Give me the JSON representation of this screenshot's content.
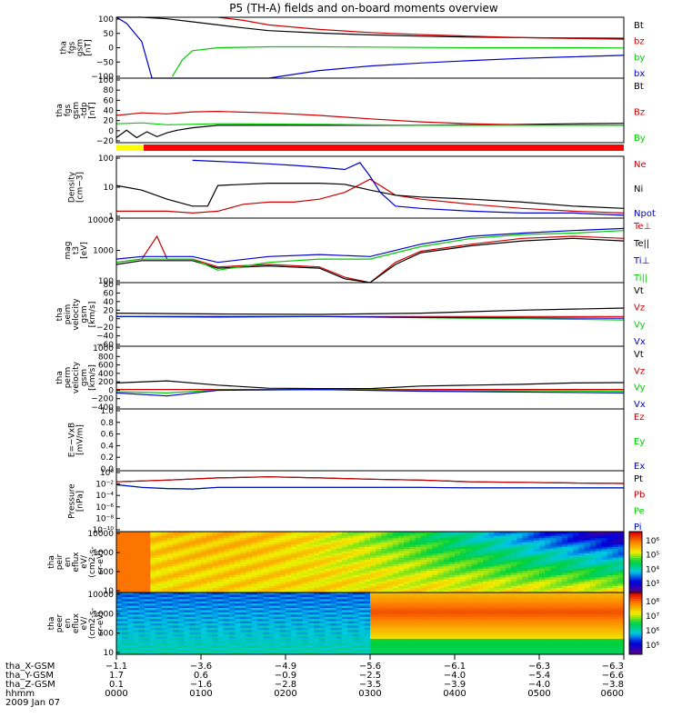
{
  "title": "P5 (TH-A) fields and on-board moments overview",
  "colors": {
    "black": "#000000",
    "red": "#cc0000",
    "green": "#00cc00",
    "blue": "#0000cc",
    "mode_bar_red": "#ff0000",
    "mode_bar_yellow": "#ffff00"
  },
  "chart_data": [
    {
      "type": "line",
      "ylabel": [
        "tha",
        "fgs",
        "gsm",
        "[nT]"
      ],
      "yticks": [
        "100",
        "50",
        "0",
        "−50",
        "−100"
      ],
      "ylim": [
        -100,
        100
      ],
      "series": [
        {
          "name": "Bt",
          "color": "#000000",
          "x": [
            0,
            0.02,
            0.05,
            0.1,
            0.15,
            0.2,
            0.25,
            0.3,
            0.4,
            0.5,
            0.6,
            0.7,
            0.8,
            0.9,
            1.0
          ],
          "y": [
            100,
            100,
            100,
            95,
            85,
            75,
            65,
            56,
            48,
            42,
            38,
            35,
            33,
            32,
            31
          ]
        },
        {
          "name": "bz",
          "color": "#cc0000",
          "x": [
            0.2,
            0.25,
            0.3,
            0.4,
            0.5,
            0.6,
            0.7,
            0.8,
            0.9,
            1.0
          ],
          "y": [
            100,
            90,
            75,
            60,
            50,
            43,
            38,
            33,
            30,
            28
          ]
        },
        {
          "name": "by",
          "color": "#00cc00",
          "x": [
            0.11,
            0.13,
            0.15,
            0.2,
            0.3,
            0.4,
            0.5,
            0.6,
            0.7,
            0.8,
            0.9,
            1.0
          ],
          "y": [
            -95,
            -40,
            -10,
            0,
            3,
            3,
            2,
            1,
            0,
            0,
            0,
            -1
          ]
        },
        {
          "name": "bx",
          "color": "#0000cc",
          "x": [
            0,
            0.02,
            0.05,
            0.07,
            0.3,
            0.4,
            0.5,
            0.6,
            0.7,
            0.8,
            0.9,
            1.0
          ],
          "y": [
            100,
            80,
            20,
            -100,
            -100,
            -75,
            -60,
            -50,
            -42,
            -35,
            -30,
            -25
          ]
        }
      ]
    },
    {
      "type": "line",
      "ylabel": [
        "tha",
        "fgs",
        "gsm",
        "-tdp",
        "[nT]"
      ],
      "yticks": [
        "100",
        "80",
        "60",
        "40",
        "20",
        "0",
        "−20"
      ],
      "ylim": [
        -30,
        100
      ],
      "series": [
        {
          "name": "Bt",
          "color": "#000000",
          "x": [
            0,
            0.02,
            0.04,
            0.06,
            0.08,
            0.1,
            0.12,
            0.15,
            0.2,
            0.3,
            0.4,
            0.5,
            0.6,
            0.7,
            0.8,
            0.9,
            1.0
          ],
          "y": [
            -20,
            -5,
            -20,
            -8,
            -18,
            -10,
            -5,
            0,
            5,
            5,
            5,
            5,
            5,
            6,
            7,
            8,
            9
          ]
        },
        {
          "name": "Bz",
          "color": "#cc0000",
          "x": [
            0,
            0.05,
            0.1,
            0.15,
            0.2,
            0.3,
            0.4,
            0.5,
            0.6,
            0.7,
            0.8,
            0.9,
            1.0
          ],
          "y": [
            25,
            30,
            28,
            32,
            33,
            30,
            25,
            18,
            12,
            8,
            6,
            5,
            5
          ]
        },
        {
          "name": "By",
          "color": "#00cc00",
          "x": [
            0,
            0.05,
            0.1,
            0.2,
            0.4,
            0.6,
            0.8,
            1.0
          ],
          "y": [
            8,
            10,
            6,
            8,
            7,
            5,
            5,
            5
          ]
        }
      ]
    },
    {
      "type": "line",
      "ylabel": [
        "Density",
        "[cm−3]"
      ],
      "yticks": [
        "100",
        "10",
        "1"
      ],
      "scale": "log",
      "ylim": [
        0.3,
        150
      ],
      "series": [
        {
          "name": "Ne",
          "color": "#cc0000",
          "x": [
            0,
            0.1,
            0.15,
            0.2,
            0.25,
            0.3,
            0.35,
            0.4,
            0.45,
            0.5,
            0.55,
            0.6,
            0.7,
            0.8,
            0.9,
            1.0
          ],
          "y": [
            0.6,
            0.6,
            0.5,
            0.6,
            1.2,
            1.5,
            1.5,
            2,
            4,
            15,
            3,
            2,
            1.2,
            0.8,
            0.6,
            0.5
          ]
        },
        {
          "name": "Ni",
          "color": "#000000",
          "x": [
            0,
            0.05,
            0.1,
            0.15,
            0.18,
            0.2,
            0.25,
            0.3,
            0.4,
            0.45,
            0.5,
            0.55,
            0.6,
            0.7,
            0.8,
            0.9,
            1.0
          ],
          "y": [
            8,
            5,
            2,
            1,
            1,
            8,
            9,
            10,
            10,
            9,
            5,
            3,
            2.5,
            2,
            1.5,
            1,
            0.8
          ]
        },
        {
          "name": "Npot",
          "color": "#0000cc",
          "x": [
            0.15,
            0.2,
            0.25,
            0.3,
            0.35,
            0.4,
            0.45,
            0.48,
            0.5,
            0.52,
            0.55,
            0.6,
            0.7,
            0.8,
            0.9,
            1.0
          ],
          "y": [
            100,
            90,
            80,
            70,
            60,
            50,
            40,
            80,
            20,
            4,
            1,
            0.8,
            0.6,
            0.5,
            0.5,
            0.4
          ]
        }
      ]
    },
    {
      "type": "line",
      "ylabel": [
        "mag",
        "t3",
        "[eV]"
      ],
      "yticks": [
        "10000",
        "1000",
        "100"
      ],
      "scale": "log",
      "ylim": [
        50,
        15000
      ],
      "series": [
        {
          "name": "Te⊥",
          "color": "#cc0000",
          "x": [
            0,
            0.05,
            0.08,
            0.1,
            0.15,
            0.2,
            0.3,
            0.4,
            0.45,
            0.5,
            0.55,
            0.6,
            0.7,
            0.8,
            0.9,
            1.0
          ],
          "y": [
            300,
            400,
            3000,
            400,
            400,
            200,
            250,
            200,
            80,
            50,
            300,
            800,
            1500,
            2500,
            3000,
            2500
          ]
        },
        {
          "name": "Te||",
          "color": "#000000",
          "x": [
            0,
            0.05,
            0.1,
            0.15,
            0.2,
            0.3,
            0.4,
            0.45,
            0.5,
            0.55,
            0.6,
            0.7,
            0.8,
            0.9,
            1.0
          ],
          "y": [
            250,
            350,
            350,
            350,
            180,
            220,
            180,
            70,
            40,
            250,
            700,
            1300,
            2000,
            2500,
            2000
          ]
        },
        {
          "name": "Ti⊥",
          "color": "#0000cc",
          "x": [
            0,
            0.05,
            0.1,
            0.15,
            0.2,
            0.3,
            0.4,
            0.5,
            0.6,
            0.7,
            0.8,
            0.9,
            1.0
          ],
          "y": [
            400,
            500,
            500,
            500,
            300,
            500,
            600,
            500,
            1500,
            3000,
            4000,
            5000,
            6000
          ]
        },
        {
          "name": "Ti||",
          "color": "#00cc00",
          "x": [
            0,
            0.05,
            0.1,
            0.15,
            0.2,
            0.3,
            0.4,
            0.5,
            0.6,
            0.7,
            0.8,
            0.9,
            1.0
          ],
          "y": [
            300,
            400,
            400,
            400,
            150,
            300,
            400,
            400,
            1200,
            2500,
            3500,
            4000,
            5000
          ]
        }
      ]
    },
    {
      "type": "line",
      "ylabel": [
        "tha",
        "peim",
        "velocity",
        "gsm",
        "[km/s]"
      ],
      "yticks": [
        "80",
        "60",
        "40",
        "20",
        "0",
        "−20",
        "−40",
        "−60"
      ],
      "ylim": [
        -70,
        80
      ],
      "series": [
        {
          "name": "Vt",
          "color": "#000000",
          "x": [
            0,
            0.2,
            0.4,
            0.6,
            0.8,
            1.0
          ],
          "y": [
            8,
            6,
            5,
            8,
            15,
            20
          ]
        },
        {
          "name": "Vz",
          "color": "#cc0000",
          "x": [
            0,
            0.2,
            0.4,
            0.6,
            0.8,
            1.0
          ],
          "y": [
            0,
            0,
            0,
            0,
            0,
            0
          ]
        },
        {
          "name": "Vy",
          "color": "#00cc00",
          "x": [
            0,
            0.2,
            0.4,
            0.6,
            0.8,
            1.0
          ],
          "y": [
            0,
            -2,
            0,
            -3,
            -5,
            -8
          ]
        },
        {
          "name": "Vx",
          "color": "#0000cc",
          "x": [
            0,
            0.2,
            0.4,
            0.6,
            0.8,
            1.0
          ],
          "y": [
            0,
            0,
            0,
            -2,
            -3,
            -4
          ]
        }
      ]
    },
    {
      "type": "line",
      "ylabel": [
        "tha",
        "perm",
        "velocity",
        "gsm",
        "[km/s]"
      ],
      "yticks": [
        "1000",
        "800",
        "600",
        "400",
        "200",
        "0",
        "−200",
        "−400"
      ],
      "ylim": [
        -450,
        1000
      ],
      "series": [
        {
          "name": "Vt",
          "color": "#000000",
          "x": [
            0,
            0.1,
            0.2,
            0.3,
            0.4,
            0.5,
            0.6,
            0.7,
            0.8,
            0.9,
            1.0
          ],
          "y": [
            150,
            200,
            100,
            30,
            20,
            20,
            80,
            100,
            120,
            150,
            160
          ]
        },
        {
          "name": "Vz",
          "color": "#cc0000",
          "x": [
            0,
            0.2,
            0.4,
            0.6,
            0.8,
            1.0
          ],
          "y": [
            0,
            0,
            0,
            0,
            0,
            0
          ]
        },
        {
          "name": "Vy",
          "color": "#00cc00",
          "x": [
            0,
            0.1,
            0.2,
            0.4,
            0.6,
            0.8,
            1.0
          ],
          "y": [
            -50,
            -80,
            -10,
            0,
            -20,
            -30,
            -40
          ]
        },
        {
          "name": "Vx",
          "color": "#0000cc",
          "x": [
            0,
            0.1,
            0.2,
            0.4,
            0.6,
            0.8,
            1.0
          ],
          "y": [
            -80,
            -150,
            -20,
            0,
            -40,
            -60,
            -80
          ]
        }
      ]
    },
    {
      "type": "line",
      "ylabel": [
        "E=−VxB",
        "[mV/m]"
      ],
      "yticks": [
        "1.0",
        "0.8",
        "0.6",
        "0.4",
        "0.2",
        "0.0"
      ],
      "ylim": [
        0,
        1
      ],
      "series": [
        {
          "name": "Ez",
          "color": "#cc0000",
          "x": [],
          "y": []
        },
        {
          "name": "Ey",
          "color": "#00cc00",
          "x": [],
          "y": []
        },
        {
          "name": "Ex",
          "color": "#0000cc",
          "x": [],
          "y": []
        }
      ]
    },
    {
      "type": "line",
      "ylabel": [
        "Pressure",
        "[nPa]"
      ],
      "yticks": [
        "10⁰",
        "10⁻²",
        "10⁻⁴",
        "10⁻⁶",
        "10⁻⁸",
        "10⁻¹⁰"
      ],
      "scale": "log",
      "ylim": [
        1e-10,
        10
      ],
      "series": [
        {
          "name": "Pt",
          "color": "#000000",
          "x": [
            0,
            0.1,
            0.2,
            0.3,
            0.4,
            0.5,
            0.6,
            0.7,
            0.8,
            0.9,
            1.0
          ],
          "y": [
            0.1,
            0.2,
            0.5,
            0.8,
            0.5,
            0.3,
            0.2,
            0.1,
            0.08,
            0.06,
            0.05
          ]
        },
        {
          "name": "Pb",
          "color": "#cc0000",
          "x": [
            0,
            0.1,
            0.2,
            0.3,
            0.4,
            0.5,
            0.6,
            0.7,
            0.8,
            0.9,
            1.0
          ],
          "y": [
            0.1,
            0.2,
            0.5,
            0.8,
            0.5,
            0.3,
            0.2,
            0.1,
            0.08,
            0.06,
            0.05
          ]
        },
        {
          "name": "Pe",
          "color": "#00cc00",
          "x": [
            0,
            0.05,
            0.1,
            0.15,
            0.2,
            0.3,
            0.4,
            0.5,
            0.6,
            0.7,
            0.8,
            0.9,
            1.0
          ],
          "y": [
            0.03,
            0.01,
            0.006,
            0.005,
            0.01,
            0.01,
            0.01,
            0.01,
            0.01,
            0.008,
            0.008,
            0.008,
            0.008
          ]
        },
        {
          "name": "Pi",
          "color": "#0000cc",
          "x": [
            0,
            0.05,
            0.1,
            0.15,
            0.2,
            0.3,
            0.4,
            0.5,
            0.6,
            0.7,
            0.8,
            0.9,
            1.0
          ],
          "y": [
            0.03,
            0.01,
            0.006,
            0.005,
            0.01,
            0.01,
            0.01,
            0.01,
            0.01,
            0.008,
            0.008,
            0.008,
            0.008
          ]
        }
      ]
    },
    {
      "type": "heatmap",
      "ylabel": [
        "tha",
        "peir",
        "en",
        "eflux",
        "eV/",
        "(cm2-s-",
        "sr-eV)"
      ],
      "yticks": [
        "10000",
        "1000",
        "100",
        "10"
      ],
      "scale": "log",
      "ylim": [
        7,
        20000
      ],
      "colorbar_ticks": [
        "10⁶",
        "10⁵",
        "10⁴",
        "10³"
      ]
    },
    {
      "type": "heatmap",
      "ylabel": [
        "tha",
        "peer",
        "en",
        "eflux",
        "eV/",
        "(cm2-s-",
        "sr-eV)"
      ],
      "yticks": [
        "10000",
        "1000",
        "100",
        "10"
      ],
      "scale": "log",
      "ylim": [
        7,
        20000
      ],
      "colorbar_ticks": [
        "10⁸",
        "10⁷",
        "10⁶",
        "10⁵"
      ]
    }
  ],
  "xaxis": {
    "rows": [
      {
        "label": "tha_X-GSM",
        "values": [
          "−1.1",
          "−3.6",
          "−4.9",
          "−5.6",
          "−6.1",
          "−6.3",
          "−6.3"
        ]
      },
      {
        "label": "tha_Y-GSM",
        "values": [
          "1.7",
          "0.6",
          "−0.9",
          "−2.5",
          "−4.0",
          "−5.4",
          "−6.6"
        ]
      },
      {
        "label": "tha_Z-GSM",
        "values": [
          "0.1",
          "−1.6",
          "−2.8",
          "−3.5",
          "−3.9",
          "−4.0",
          "−3.8"
        ]
      },
      {
        "label": "hhmm",
        "values": [
          "0000",
          "0100",
          "0200",
          "0300",
          "0400",
          "0500",
          "0600"
        ]
      }
    ],
    "date": "2009 Jan 07"
  }
}
